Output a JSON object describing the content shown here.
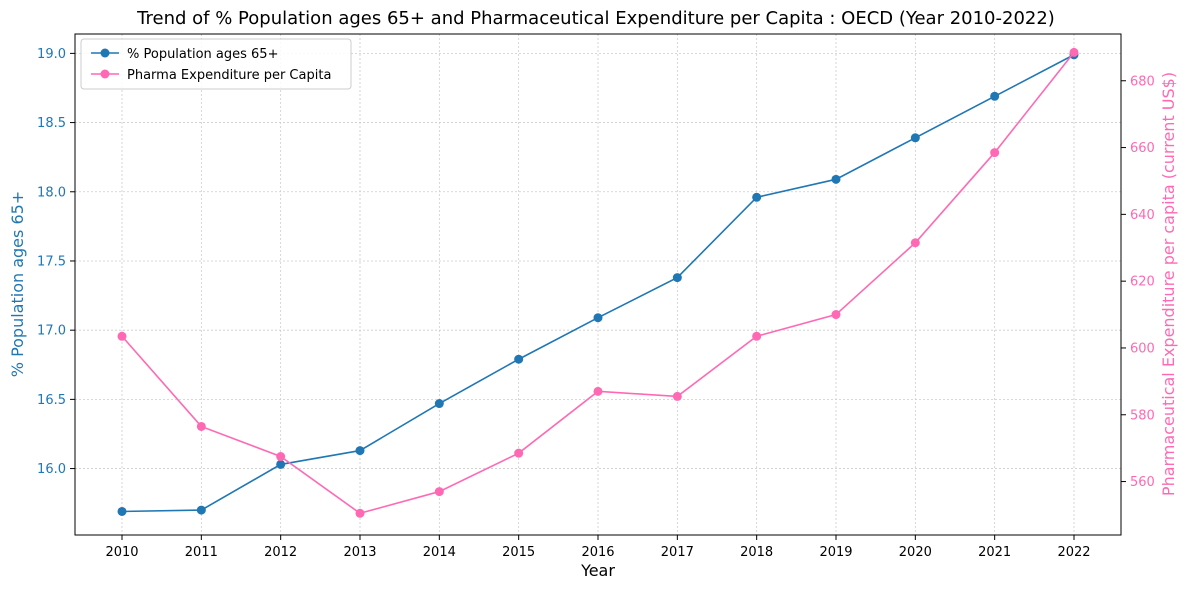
{
  "chart_data": {
    "type": "line",
    "title": "Trend of % Population ages 65+ and Pharmaceutical Expenditure per Capita : OECD (Year 2010-2022)",
    "xlabel": "Year",
    "ylabel": "% Population ages 65+",
    "ylabel_right": "Pharmaceutical Expenditure per capita (current US$)",
    "x": [
      2010,
      2011,
      2012,
      2013,
      2014,
      2015,
      2016,
      2017,
      2018,
      2019,
      2020,
      2021,
      2022
    ],
    "ylim": [
      15.52,
      19.14
    ],
    "ylim_right": [
      544,
      694
    ],
    "yticks": [
      16.0,
      16.5,
      17.0,
      17.5,
      18.0,
      18.5,
      19.0
    ],
    "yticks_right": [
      560,
      580,
      600,
      620,
      640,
      660,
      680
    ],
    "grid": true,
    "legend_position": "top-left",
    "series": [
      {
        "name": "% Population ages 65+",
        "axis": "left",
        "color": "#1f77b4",
        "values": [
          15.69,
          15.7,
          16.03,
          16.13,
          16.47,
          16.79,
          17.09,
          17.38,
          17.96,
          18.09,
          18.39,
          18.69,
          18.99
        ]
      },
      {
        "name": "Pharma Expenditure per Capita",
        "axis": "right",
        "color": "#ff69b4",
        "values": [
          603.5,
          576.5,
          567.5,
          550.5,
          557,
          568.5,
          587,
          585.5,
          603.5,
          610,
          631.5,
          658.5,
          688.5
        ]
      }
    ]
  }
}
